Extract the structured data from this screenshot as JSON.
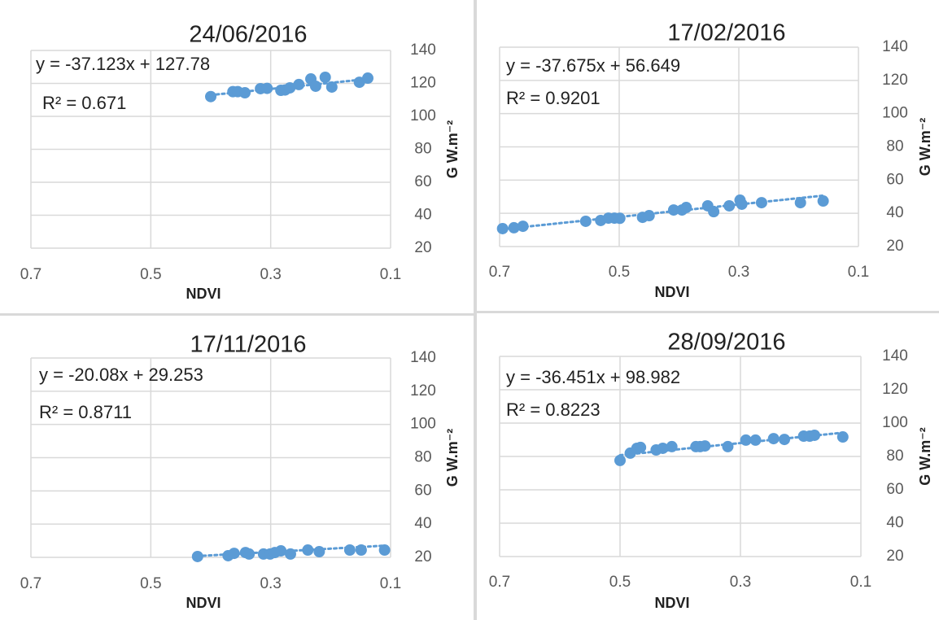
{
  "chart_data": [
    {
      "type": "scatter",
      "title": "24/06/2016",
      "x_label": "NDVI",
      "y_label": "G W.m⁻²",
      "annotations": [
        "y = -37.123x + 127.78",
        "R² = 0.671"
      ],
      "trendline": {
        "slope": -37.123,
        "intercept": 127.78
      },
      "color": "#5b9bd5",
      "grid": true,
      "xlim": [
        0.7,
        0.1
      ],
      "xticks": [
        0.7,
        0.5,
        0.3,
        0.1
      ],
      "ylim": [
        20,
        140
      ],
      "yticks": [
        20,
        40,
        60,
        80,
        100,
        120,
        140
      ],
      "x": [
        0.4,
        0.363,
        0.355,
        0.343,
        0.317,
        0.306,
        0.283,
        0.276,
        0.268,
        0.253,
        0.233,
        0.225,
        0.209,
        0.198,
        0.152,
        0.138
      ],
      "values": [
        112,
        115,
        115,
        114.3,
        116.8,
        117,
        115.8,
        116,
        117.3,
        119.3,
        122.7,
        118.3,
        123.7,
        117.8,
        120.7,
        123.2
      ]
    },
    {
      "type": "scatter",
      "title": "17/02/2016",
      "x_label": "NDVI",
      "y_label": "G W.m⁻²",
      "annotations": [
        "y = -37.675x + 56.649",
        "R² = 0.9201"
      ],
      "trendline": {
        "slope": -37.675,
        "intercept": 56.649
      },
      "color": "#5b9bd5",
      "grid": true,
      "xlim": [
        0.7,
        0.1
      ],
      "xticks": [
        0.7,
        0.5,
        0.3,
        0.1
      ],
      "ylim": [
        20,
        140
      ],
      "yticks": [
        20,
        40,
        60,
        80,
        100,
        120,
        140
      ],
      "x": [
        0.695,
        0.676,
        0.661,
        0.556,
        0.531,
        0.518,
        0.508,
        0.499,
        0.461,
        0.45,
        0.409,
        0.395,
        0.388,
        0.352,
        0.342,
        0.316,
        0.298,
        0.295,
        0.262,
        0.197,
        0.159
      ],
      "values": [
        30.8,
        31.3,
        32.2,
        35.2,
        35.7,
        37.1,
        37.1,
        37,
        37.6,
        38.6,
        42,
        42,
        43.5,
        44.5,
        41,
        44.5,
        47.9,
        45.5,
        46.4,
        46.4,
        47.4
      ]
    },
    {
      "type": "scatter",
      "title": "17/11/2016",
      "x_label": "NDVI",
      "y_label": "G W.m⁻²",
      "annotations": [
        "y = -20.08x + 29.253",
        "R² = 0.8711"
      ],
      "trendline": {
        "slope": -20.08,
        "intercept": 29.253
      },
      "color": "#5b9bd5",
      "grid": true,
      "xlim": [
        0.7,
        0.1
      ],
      "xticks": [
        0.7,
        0.5,
        0.3,
        0.1
      ],
      "ylim": [
        20,
        140
      ],
      "yticks": [
        20,
        40,
        60,
        80,
        100,
        120,
        140
      ],
      "x": [
        0.422,
        0.371,
        0.361,
        0.342,
        0.336,
        0.312,
        0.301,
        0.293,
        0.283,
        0.267,
        0.238,
        0.219,
        0.168,
        0.149,
        0.11
      ],
      "values": [
        20.5,
        21,
        22.4,
        22.9,
        22,
        22,
        22,
        22.9,
        23.9,
        22,
        24.4,
        23.4,
        24.4,
        24.4,
        24.4
      ]
    },
    {
      "type": "scatter",
      "title": "28/09/2016",
      "x_label": "NDVI",
      "y_label": "G W.m⁻²",
      "annotations": [
        "y = -36.451x + 98.982",
        "R² = 0.8223"
      ],
      "trendline": {
        "slope": -36.451,
        "intercept": 98.982
      },
      "color": "#5b9bd5",
      "grid": true,
      "xlim": [
        0.7,
        0.1
      ],
      "xticks": [
        0.7,
        0.5,
        0.3,
        0.1
      ],
      "ylim": [
        20,
        140
      ],
      "yticks": [
        20,
        40,
        60,
        80,
        100,
        120,
        140
      ],
      "x": [
        0.5,
        0.483,
        0.472,
        0.466,
        0.44,
        0.429,
        0.414,
        0.374,
        0.367,
        0.359,
        0.321,
        0.291,
        0.275,
        0.245,
        0.227,
        0.195,
        0.185,
        0.177,
        0.13
      ],
      "values": [
        77.6,
        82,
        84.9,
        85.4,
        83.9,
        84.9,
        85.9,
        85.9,
        85.9,
        86.3,
        85.9,
        89.8,
        89.8,
        90.7,
        90.2,
        92.2,
        92.2,
        92.7,
        91.7
      ]
    }
  ]
}
